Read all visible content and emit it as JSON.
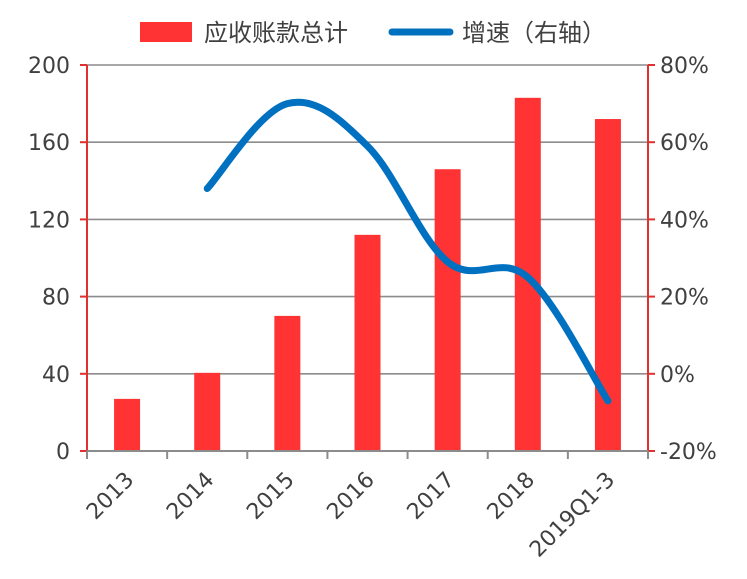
{
  "chart_data": {
    "type": "bar",
    "categories": [
      "2013",
      "2014",
      "2015",
      "2016",
      "2017",
      "2018",
      "2019Q1-3"
    ],
    "series": [
      {
        "name": "应收账款总计",
        "type": "bar",
        "axis": "left",
        "values": [
          27,
          40.5,
          70,
          112,
          146,
          183,
          172
        ]
      },
      {
        "name": "增速（右轴）",
        "type": "line",
        "axis": "right",
        "smooth": true,
        "values": [
          null,
          0.48,
          0.7,
          0.59,
          0.29,
          0.25,
          -0.07
        ]
      }
    ],
    "y_left": {
      "min": 0,
      "max": 200,
      "ticks": [
        0,
        40,
        80,
        120,
        160,
        200
      ]
    },
    "y_right": {
      "min": -0.2,
      "max": 0.8,
      "ticks": [
        -0.2,
        0,
        0.2,
        0.4,
        0.6,
        0.8
      ],
      "tick_labels": [
        "-20%",
        "0%",
        "20%",
        "40%",
        "60%",
        "80%"
      ]
    },
    "grid": true,
    "legend_position": "top",
    "colors": {
      "bar": "#FF3333",
      "line": "#0070C0",
      "axis_red": "#E03030",
      "grid": "#8C8C8C",
      "text": "#404040"
    }
  }
}
